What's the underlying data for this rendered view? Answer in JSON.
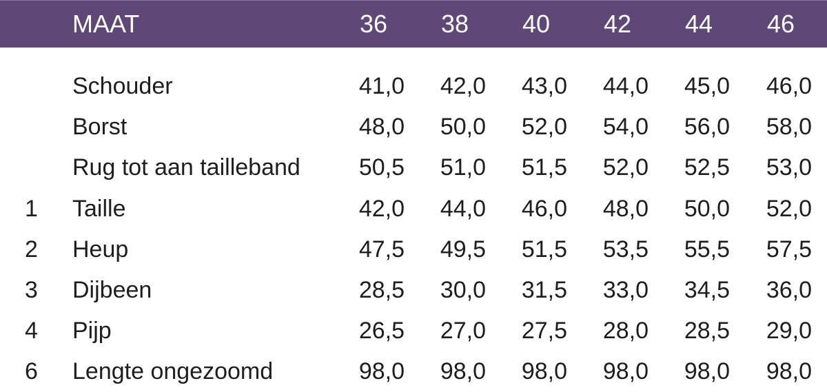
{
  "colors": {
    "header_bg": "#5f4878",
    "header_text": "#ffffff"
  },
  "header": {
    "label": "MAAT",
    "sizes": [
      "36",
      "38",
      "40",
      "42",
      "44",
      "46"
    ]
  },
  "rows": [
    {
      "num": "",
      "label": "Schouder",
      "values": [
        "41,0",
        "42,0",
        "43,0",
        "44,0",
        "45,0",
        "46,0"
      ]
    },
    {
      "num": "",
      "label": "Borst",
      "values": [
        "48,0",
        "50,0",
        "52,0",
        "54,0",
        "56,0",
        "58,0"
      ]
    },
    {
      "num": "",
      "label": "Rug tot aan tailleband",
      "values": [
        "50,5",
        "51,0",
        "51,5",
        "52,0",
        "52,5",
        "53,0"
      ]
    },
    {
      "num": "1",
      "label": "Taille",
      "values": [
        "42,0",
        "44,0",
        "46,0",
        "48,0",
        "50,0",
        "52,0"
      ]
    },
    {
      "num": "2",
      "label": "Heup",
      "values": [
        "47,5",
        "49,5",
        "51,5",
        "53,5",
        "55,5",
        "57,5"
      ]
    },
    {
      "num": "3",
      "label": "Dijbeen",
      "values": [
        "28,5",
        "30,0",
        "31,5",
        "33,0",
        "34,5",
        "36,0"
      ]
    },
    {
      "num": "4",
      "label": "Pijp",
      "values": [
        "26,5",
        "27,0",
        "27,5",
        "28,0",
        "28,5",
        "29,0"
      ]
    },
    {
      "num": "6",
      "label": "Lengte ongezoomd",
      "values": [
        "98,0",
        "98,0",
        "98,0",
        "98,0",
        "98,0",
        "98,0"
      ]
    }
  ]
}
